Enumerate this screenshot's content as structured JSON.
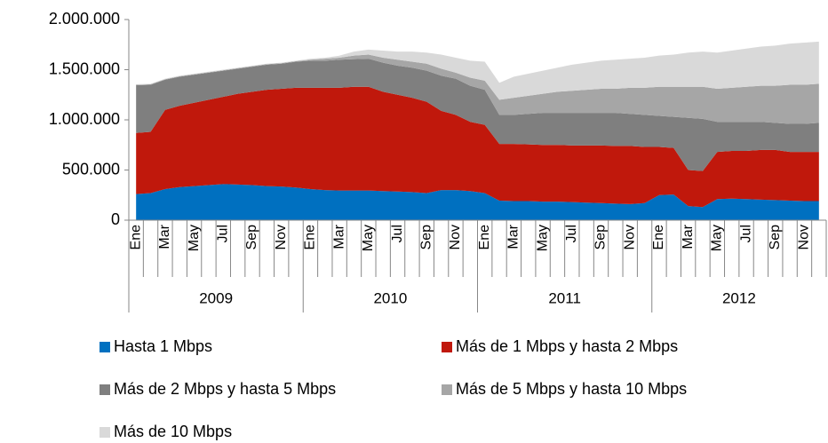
{
  "chart_data": {
    "type": "stacked_area",
    "categories": [
      "Ene",
      null,
      "Mar",
      null,
      "May",
      null,
      "Jul",
      null,
      "Sep",
      null,
      "Nov",
      null,
      "Ene",
      null,
      "Mar",
      null,
      "May",
      null,
      "Jul",
      null,
      "Sep",
      null,
      "Nov",
      null,
      "Ene",
      null,
      "Mar",
      null,
      "May",
      null,
      "Jul",
      null,
      "Sep",
      null,
      "Nov",
      null,
      "Ene",
      null,
      "Mar",
      null,
      "May",
      null,
      "Jul",
      null,
      "Sep",
      null,
      "Nov",
      null
    ],
    "years": [
      "2009",
      "2010",
      "2011",
      "2012"
    ],
    "ylim": [
      0,
      2000000
    ],
    "yticks": [
      0,
      {
        "value": 500000,
        "label": "500.000"
      },
      {
        "value": 1000000,
        "label": "1.000.000"
      },
      {
        "value": 1500000,
        "label": "1.500.000"
      },
      {
        "value": 2000000,
        "label": "2.000.000"
      }
    ],
    "legend": "bottom",
    "series": [
      {
        "name": "Hasta 1 Mbps",
        "color": "#0070c0",
        "values": [
          260000,
          270000,
          310000,
          330000,
          340000,
          350000,
          360000,
          355000,
          350000,
          340000,
          335000,
          325000,
          310000,
          300000,
          295000,
          295000,
          295000,
          290000,
          285000,
          280000,
          270000,
          300000,
          300000,
          290000,
          270000,
          195000,
          190000,
          190000,
          185000,
          185000,
          180000,
          175000,
          170000,
          165000,
          160000,
          170000,
          250000,
          255000,
          140000,
          130000,
          210000,
          215000,
          210000,
          205000,
          200000,
          195000,
          190000,
          190000
        ]
      },
      {
        "name": "Más de 1 Mbps y hasta 2 Mbps",
        "color": "#c0180c",
        "values": [
          610000,
          610000,
          790000,
          810000,
          830000,
          850000,
          870000,
          905000,
          930000,
          960000,
          975000,
          995000,
          1010000,
          1020000,
          1025000,
          1035000,
          1035000,
          990000,
          965000,
          940000,
          910000,
          790000,
          750000,
          690000,
          680000,
          565000,
          570000,
          565000,
          565000,
          565000,
          565000,
          570000,
          575000,
          575000,
          580000,
          560000,
          480000,
          465000,
          360000,
          360000,
          470000,
          475000,
          480000,
          495000,
          500000,
          485000,
          490000,
          490000
        ]
      },
      {
        "name": "Más de 2 Mbps y hasta 5 Mbps",
        "color": "#7f7f7f",
        "values": [
          475000,
          470000,
          300000,
          290000,
          280000,
          270000,
          260000,
          250000,
          250000,
          250000,
          250000,
          260000,
          270000,
          270000,
          280000,
          275000,
          280000,
          290000,
          290000,
          300000,
          310000,
          350000,
          360000,
          360000,
          350000,
          290000,
          290000,
          305000,
          320000,
          320000,
          325000,
          325000,
          325000,
          330000,
          320000,
          320000,
          310000,
          310000,
          520000,
          520000,
          300000,
          290000,
          290000,
          280000,
          270000,
          280000,
          280000,
          290000
        ]
      },
      {
        "name": "Más de 5 Mbps y hasta 10 Mbps",
        "color": "#a6a6a6",
        "values": [
          5000,
          5000,
          5000,
          5000,
          5000,
          5000,
          5000,
          5000,
          5000,
          5000,
          5000,
          5000,
          10000,
          20000,
          20000,
          35000,
          40000,
          50000,
          60000,
          60000,
          70000,
          70000,
          60000,
          80000,
          90000,
          150000,
          170000,
          180000,
          190000,
          210000,
          220000,
          230000,
          240000,
          240000,
          260000,
          270000,
          290000,
          300000,
          310000,
          320000,
          330000,
          340000,
          350000,
          360000,
          370000,
          390000,
          390000,
          390000
        ]
      },
      {
        "name": "Más de 10 Mbps",
        "color": "#d9d9d9",
        "values": [
          5000,
          5000,
          5000,
          5000,
          5000,
          5000,
          5000,
          5000,
          5000,
          5000,
          5000,
          5000,
          10000,
          10000,
          20000,
          40000,
          50000,
          70000,
          80000,
          100000,
          110000,
          140000,
          150000,
          170000,
          190000,
          170000,
          210000,
          220000,
          230000,
          240000,
          260000,
          270000,
          280000,
          290000,
          290000,
          300000,
          310000,
          320000,
          340000,
          350000,
          360000,
          370000,
          380000,
          390000,
          400000,
          410000,
          420000,
          420000
        ]
      }
    ]
  }
}
